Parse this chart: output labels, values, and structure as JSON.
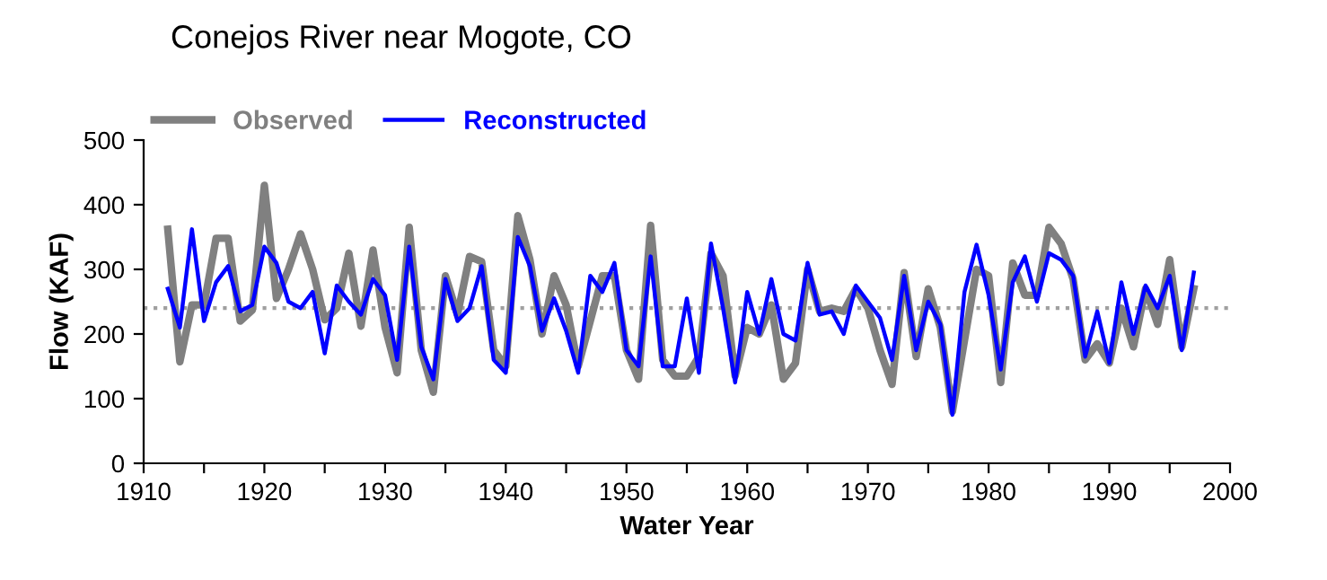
{
  "chart_data": {
    "type": "line",
    "title": "Conejos River near Mogote, CO",
    "xlabel": "Water Year",
    "ylabel": "Flow (KAF)",
    "x": [
      1912,
      1913,
      1914,
      1915,
      1916,
      1917,
      1918,
      1919,
      1920,
      1921,
      1922,
      1923,
      1924,
      1925,
      1926,
      1927,
      1928,
      1929,
      1930,
      1931,
      1932,
      1933,
      1934,
      1935,
      1936,
      1937,
      1938,
      1939,
      1940,
      1941,
      1942,
      1943,
      1944,
      1945,
      1946,
      1947,
      1948,
      1949,
      1950,
      1951,
      1952,
      1953,
      1954,
      1955,
      1956,
      1957,
      1958,
      1959,
      1960,
      1961,
      1962,
      1963,
      1964,
      1965,
      1966,
      1967,
      1968,
      1969,
      1970,
      1971,
      1972,
      1973,
      1974,
      1975,
      1976,
      1977,
      1978,
      1979,
      1980,
      1981,
      1982,
      1983,
      1984,
      1985,
      1986,
      1987,
      1988,
      1989,
      1990,
      1991,
      1992,
      1993,
      1994,
      1995,
      1996,
      1997
    ],
    "series": [
      {
        "name": "Observed",
        "color": "#808080",
        "values": [
          362,
          157,
          245,
          245,
          348,
          348,
          220,
          237,
          430,
          255,
          300,
          355,
          300,
          222,
          240,
          325,
          212,
          330,
          210,
          140,
          365,
          175,
          110,
          290,
          230,
          320,
          312,
          175,
          150,
          383,
          315,
          200,
          290,
          245,
          150,
          220,
          290,
          290,
          175,
          130,
          368,
          160,
          135,
          135,
          165,
          325,
          290,
          135,
          210,
          200,
          245,
          130,
          155,
          300,
          235,
          240,
          235,
          270,
          240,
          175,
          122,
          295,
          165,
          270,
          210,
          80,
          190,
          300,
          290,
          125,
          310,
          260,
          260,
          365,
          340,
          285,
          160,
          185,
          155,
          240,
          180,
          270,
          215,
          315,
          180,
          270
        ]
      },
      {
        "name": "Reconstructed",
        "color": "#0000ff",
        "values": [
          270,
          210,
          362,
          220,
          280,
          305,
          235,
          245,
          335,
          310,
          250,
          240,
          265,
          170,
          275,
          250,
          230,
          285,
          260,
          160,
          335,
          180,
          130,
          285,
          220,
          240,
          305,
          160,
          140,
          350,
          305,
          205,
          255,
          205,
          140,
          290,
          265,
          310,
          175,
          150,
          320,
          150,
          150,
          255,
          140,
          340,
          240,
          125,
          265,
          200,
          285,
          200,
          190,
          310,
          230,
          235,
          200,
          275,
          250,
          225,
          160,
          290,
          175,
          250,
          215,
          75,
          265,
          338,
          260,
          145,
          280,
          320,
          250,
          325,
          315,
          290,
          165,
          235,
          155,
          280,
          200,
          275,
          240,
          290,
          175,
          295
        ]
      }
    ],
    "xlim": [
      1910,
      2000
    ],
    "xticks": [
      1910,
      {
        "value": 1915,
        "label": null
      },
      1920,
      {
        "value": 1925,
        "label": null
      },
      1930,
      {
        "value": 1935,
        "label": null
      },
      1940,
      {
        "value": 1945,
        "label": null
      },
      1950,
      {
        "value": 1955,
        "label": null
      },
      1960,
      {
        "value": 1965,
        "label": null
      },
      1970,
      {
        "value": 1975,
        "label": null
      },
      1980,
      {
        "value": 1985,
        "label": null
      },
      1990,
      {
        "value": 1995,
        "label": null
      },
      2000
    ],
    "ylim": [
      0,
      500
    ],
    "yticks": [
      0,
      100,
      200,
      300,
      400,
      500
    ],
    "ref_lines": [
      {
        "axis": "y",
        "value": 240,
        "color": "#a0a0a0",
        "line_style": "dotted"
      }
    ],
    "grid": false,
    "legend": "top left",
    "marker": "none",
    "line_style": "solid"
  }
}
